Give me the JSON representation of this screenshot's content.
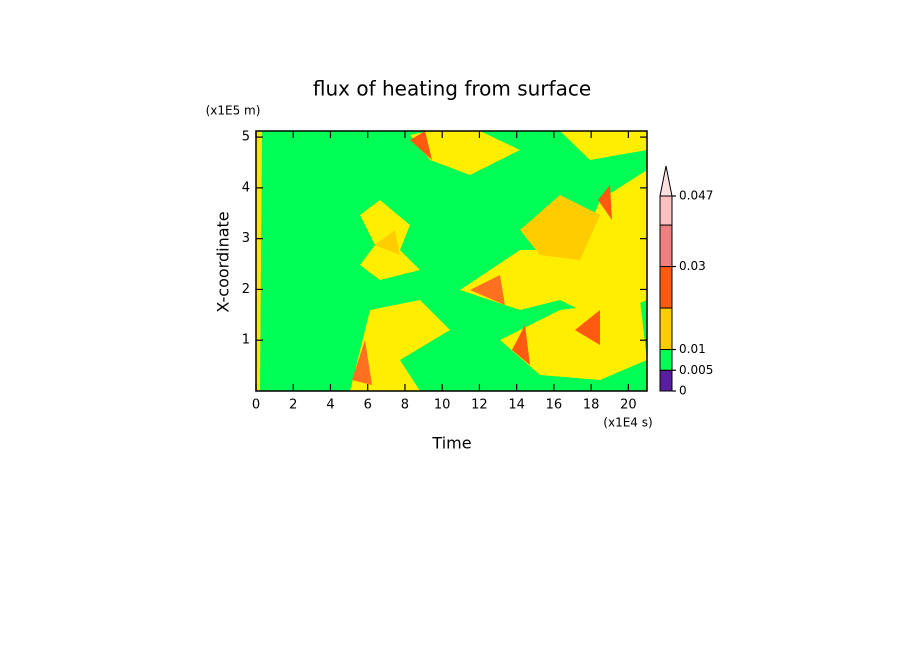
{
  "chart_data": {
    "type": "contour",
    "title": "flux of heating from surface",
    "x_label": "Time",
    "x_unit": "(x1E4 s)",
    "y_label": "X-coordinate",
    "y_unit": "(x1E5 m)",
    "xlim": [
      0,
      21
    ],
    "xticks": [
      0,
      2,
      4,
      6,
      8,
      10,
      12,
      14,
      16,
      18,
      20
    ],
    "ylim": [
      0,
      5.12
    ],
    "yticks": [
      1,
      2,
      3,
      4,
      5
    ],
    "colorbar": {
      "levels": [
        0,
        0.005,
        0.01,
        0.02,
        0.03,
        0.04,
        0.047
      ],
      "colors": [
        "#5a1fa0",
        "#00ff55",
        "#ffcc00",
        "#ff5a10",
        "#f08080",
        "#fcc0c0"
      ],
      "ticks": [
        0,
        0.005,
        0.01,
        0.03,
        0.047
      ],
      "extend_color": "#fde0e0"
    }
  }
}
